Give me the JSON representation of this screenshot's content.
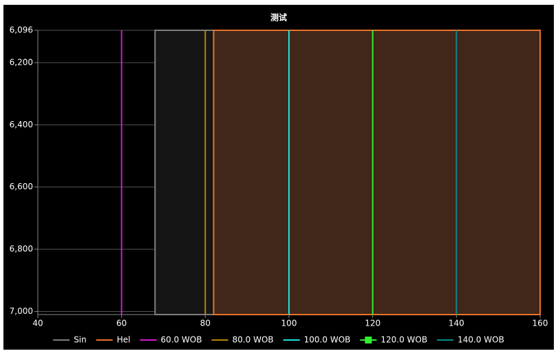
{
  "chart_data": {
    "type": "line",
    "title": "测试",
    "xlim": [
      40,
      160
    ],
    "xticks": [
      40,
      60,
      80,
      100,
      120,
      140,
      160
    ],
    "ylim": [
      6096,
      7010
    ],
    "y_inverted": true,
    "yticks": [
      {
        "value": 6096,
        "label": "6,096"
      },
      {
        "value": 6200,
        "label": "6,200"
      },
      {
        "value": 6400,
        "label": "6,400"
      },
      {
        "value": 6600,
        "label": "6,600"
      },
      {
        "value": 6800,
        "label": "6,800"
      },
      {
        "value": 7000,
        "label": "7,000"
      }
    ],
    "grid": true,
    "legend": "bottom",
    "series": [
      {
        "name": "Sin",
        "color": "#7f7f7f",
        "fill": "#151515",
        "x": [
          68,
          68,
          82,
          82
        ],
        "y": [
          7010,
          6096,
          6096,
          7010
        ]
      },
      {
        "name": "Hel",
        "color": "#e8732a",
        "fill": "#40271a",
        "x": [
          82,
          82,
          160,
          160
        ],
        "y": [
          7010,
          6096,
          6096,
          7010
        ]
      },
      {
        "name": "60.0 WOB",
        "color": "#d21ad2",
        "x": [
          60,
          60
        ],
        "y": [
          6096,
          7010
        ]
      },
      {
        "name": "80.0 WOB",
        "color": "#b8860b",
        "x": [
          80,
          80
        ],
        "y": [
          6096,
          7010
        ]
      },
      {
        "name": "100.0 WOB",
        "color": "#22e0e0",
        "x": [
          100,
          100
        ],
        "y": [
          6096,
          7010
        ]
      },
      {
        "name": "120.0 WOB",
        "color": "#33ee33",
        "marker": "square",
        "x": [
          120,
          120
        ],
        "y": [
          6096,
          7010
        ]
      },
      {
        "name": "140.0 WOB",
        "color": "#0a8a8a",
        "x": [
          140,
          140
        ],
        "y": [
          6096,
          7010
        ]
      }
    ]
  }
}
